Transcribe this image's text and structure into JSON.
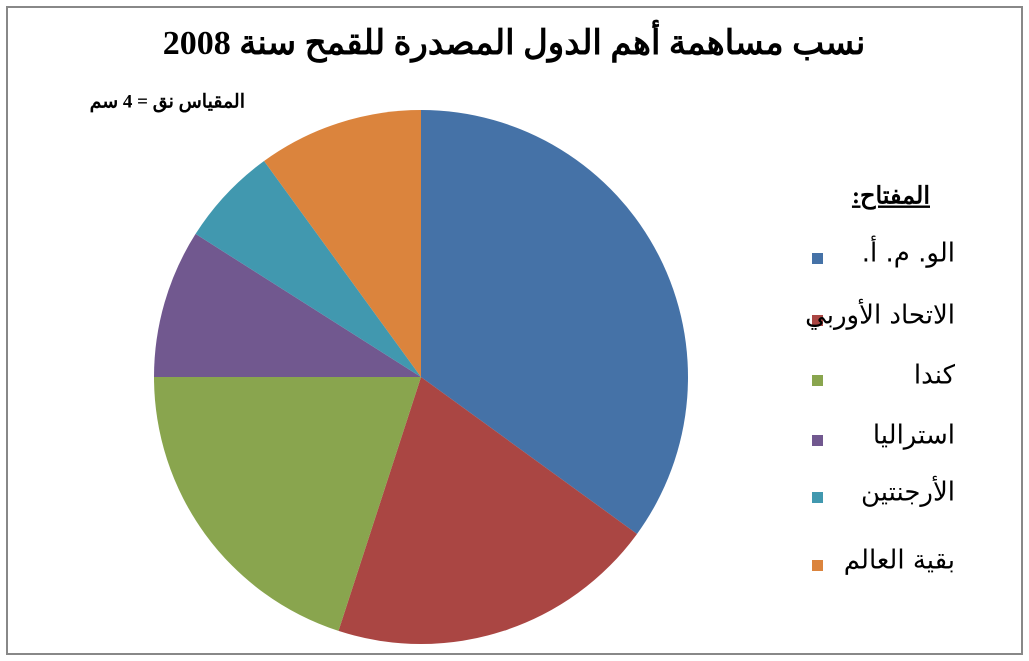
{
  "chart_data": {
    "type": "pie",
    "title": "نسب مساهمة أهم الدول المصدرة للقمح سنة 2008",
    "subtitle": "المقياس نق = 4 سم",
    "legend_title": "المفتاح:",
    "categories": [
      "الو. م. أ.",
      "الاتحاد الأوربي",
      "كندا",
      "استراليا",
      "الأرجنتين",
      "بقية العالم"
    ],
    "values": [
      35,
      20,
      20,
      9,
      6,
      10
    ],
    "colors": [
      "#4572a7",
      "#aa4643",
      "#89a54e",
      "#71588f",
      "#4198af",
      "#db843d"
    ],
    "legend": "right"
  }
}
